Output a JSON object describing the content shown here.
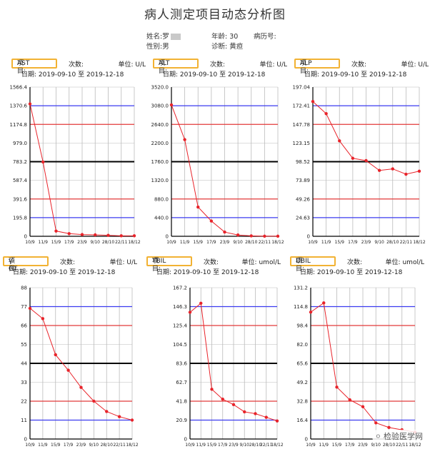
{
  "title": "病人测定项目动态分析图",
  "patient": {
    "name_label": "姓名:",
    "name_value": "罗",
    "age_label": "年龄:",
    "age_value": "30",
    "record_label": "病历号:",
    "record_value": "",
    "sex_label": "性别:",
    "sex_value": "男",
    "diag_label": "诊断:",
    "diag_value": "黄疸"
  },
  "labels": {
    "item_prefix": "项目:",
    "count": "次数:",
    "unit_prefix": "单位:",
    "date_prefix": "日期:",
    "to": "至"
  },
  "colors": {
    "line": "#e8232a",
    "blue_ref": "#3b3bf0",
    "red_ref": "#e23a3a",
    "black_ref": "#000000",
    "grid": "#bbbbbb",
    "item_border": "#f2b233"
  },
  "watermark": "检验医学网",
  "chart_data": [
    {
      "type": "line",
      "item": "AST",
      "unit": "U/L",
      "date_start": "2019-09-10",
      "date_end": "2019-12-18",
      "categories": [
        "10/9",
        "11/9",
        "15/9",
        "17/9",
        "23/9",
        "9/10",
        "28/10",
        "22/11",
        "18/12"
      ],
      "values": [
        1390,
        780,
        55,
        28,
        18,
        15,
        10,
        5,
        5
      ],
      "ylim": [
        0,
        1566.4
      ],
      "yticks": [
        "0",
        "195.8",
        "391.6",
        "587.4",
        "783.2",
        "979.0",
        "1174.8",
        "1370.6",
        "1566.4"
      ],
      "ref_blue": [
        195.8,
        1370.6
      ],
      "ref_red": [
        391.6,
        1174.8
      ],
      "ref_black": [
        783.2
      ]
    },
    {
      "type": "line",
      "item": "ALT",
      "unit": "U/L",
      "date_start": "2019-09-10",
      "date_end": "2019-12-18",
      "categories": [
        "10/9",
        "11/9",
        "15/9",
        "17/9",
        "23/9",
        "9/10",
        "28/10",
        "22/11",
        "18/12"
      ],
      "values": [
        3100,
        2280,
        690,
        360,
        100,
        30,
        10,
        2,
        2
      ],
      "ylim": [
        0,
        3520
      ],
      "yticks": [
        "0",
        "440.0",
        "880.0",
        "1320.0",
        "1760.0",
        "2200.0",
        "2640.0",
        "3080.0",
        "3520.0"
      ],
      "ref_blue": [
        440,
        3080
      ],
      "ref_red": [
        880,
        2640
      ],
      "ref_black": [
        1760
      ]
    },
    {
      "type": "line",
      "item": "ALP",
      "unit": "U/L",
      "date_start": "2019-09-10",
      "date_end": "2019-12-18",
      "categories": [
        "10/9",
        "11/9",
        "15/9",
        "17/9",
        "23/9",
        "9/10",
        "28/10",
        "22/11",
        "18/12"
      ],
      "values": [
        178,
        162,
        126,
        103,
        100,
        87,
        89,
        82,
        86
      ],
      "ylim": [
        0,
        197.04
      ],
      "yticks": [
        "0",
        "24.63",
        "49.26",
        "73.89",
        "98.52",
        "123.15",
        "147.78",
        "172.41",
        "197.04"
      ],
      "ref_blue": [
        24.63,
        172.41
      ],
      "ref_red": [
        49.26,
        147.78
      ],
      "ref_black": [
        98.52
      ]
    },
    {
      "type": "line",
      "item": "γ-GT",
      "unit": "U/L",
      "date_start": "2019-09-10",
      "date_end": "2019-12-18",
      "categories": [
        "10/9",
        "11/9",
        "15/9",
        "17/9",
        "23/9",
        "9/10",
        "28/10",
        "22/11",
        "18/12"
      ],
      "values": [
        76,
        70,
        49,
        40,
        30,
        22,
        16,
        13,
        11
      ],
      "ylim": [
        0,
        88
      ],
      "yticks": [
        "0",
        "11",
        "22",
        "33",
        "44",
        "55",
        "66",
        "77",
        "88"
      ],
      "ref_blue": [
        11,
        77
      ],
      "ref_red": [
        22,
        66
      ],
      "ref_black": [
        44
      ]
    },
    {
      "type": "line",
      "item": "TBIL",
      "unit": "umol/L",
      "date_start": "2019-09-10",
      "date_end": "2019-12-18",
      "categories": [
        "10/9",
        "11/9",
        "15/9",
        "17/9",
        "23/9",
        "9/10",
        "28/10",
        "22/11",
        "18/12"
      ],
      "values": [
        140,
        150,
        55,
        44,
        38,
        30,
        28,
        24,
        20
      ],
      "ylim": [
        0,
        167.2
      ],
      "yticks": [
        "0",
        "20.9",
        "41.8",
        "62.7",
        "83.6",
        "104.5",
        "125.4",
        "146.3",
        "167.2"
      ],
      "ref_blue": [
        20.9,
        146.3
      ],
      "ref_red": [
        41.8,
        125.4
      ],
      "ref_black": [
        83.6
      ]
    },
    {
      "type": "line",
      "item": "DBIL",
      "unit": "umol/L",
      "date_start": "2019-09-10",
      "date_end": "2019-12-18",
      "categories": [
        "10/9",
        "11/9",
        "15/9",
        "17/9",
        "23/9",
        "9/10",
        "28/10",
        "22/11",
        "18/12"
      ],
      "values": [
        110,
        118,
        45,
        34,
        28,
        14,
        10,
        8,
        6
      ],
      "ylim": [
        0,
        131.2
      ],
      "yticks": [
        "0",
        "16.4",
        "32.8",
        "49.2",
        "65.6",
        "82.0",
        "98.4",
        "114.8",
        "131.2"
      ],
      "ref_blue": [
        16.4,
        114.8
      ],
      "ref_red": [
        32.8,
        98.4
      ],
      "ref_black": [
        65.6
      ]
    }
  ]
}
